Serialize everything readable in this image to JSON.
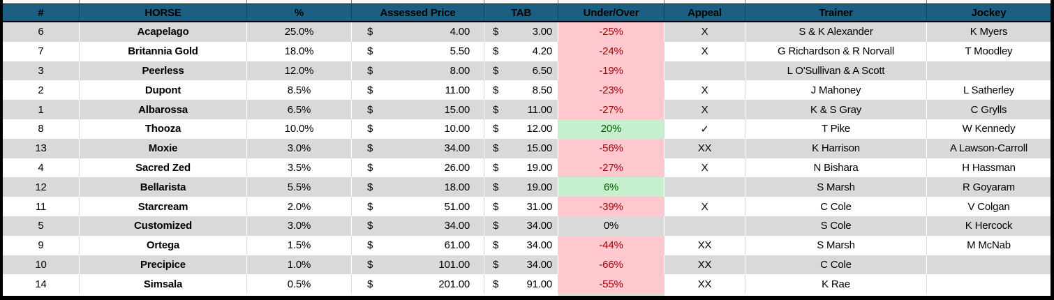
{
  "table": {
    "currency": "$",
    "columns": [
      {
        "key": "num",
        "label": "#"
      },
      {
        "key": "horse",
        "label": "HORSE"
      },
      {
        "key": "pct",
        "label": "%"
      },
      {
        "key": "assessed",
        "label": "Assessed Price"
      },
      {
        "key": "tab",
        "label": "TAB"
      },
      {
        "key": "under_over",
        "label": "Under/Over"
      },
      {
        "key": "appeal",
        "label": "Appeal"
      },
      {
        "key": "trainer",
        "label": "Trainer"
      },
      {
        "key": "jockey",
        "label": "Jockey"
      }
    ],
    "rows": [
      {
        "num": "6",
        "horse": "Acapelago",
        "pct": "25.0%",
        "assessed": "4.00",
        "tab": "3.00",
        "under_over": "-25%",
        "uo_status": "under",
        "appeal": "X",
        "trainer": "S & K Alexander",
        "jockey": "K Myers"
      },
      {
        "num": "7",
        "horse": "Britannia Gold",
        "pct": "18.0%",
        "assessed": "5.50",
        "tab": "4.20",
        "under_over": "-24%",
        "uo_status": "under",
        "appeal": "X",
        "trainer": "G Richardson & R Norvall",
        "jockey": "T Moodley"
      },
      {
        "num": "3",
        "horse": "Peerless",
        "pct": "12.0%",
        "assessed": "8.00",
        "tab": "6.50",
        "under_over": "-19%",
        "uo_status": "under",
        "appeal": "",
        "trainer": "L O'Sullivan & A Scott",
        "jockey": ""
      },
      {
        "num": "2",
        "horse": "Dupont",
        "pct": "8.5%",
        "assessed": "11.00",
        "tab": "8.50",
        "under_over": "-23%",
        "uo_status": "under",
        "appeal": "X",
        "trainer": "J Mahoney",
        "jockey": "L Satherley"
      },
      {
        "num": "1",
        "horse": "Albarossa",
        "pct": "6.5%",
        "assessed": "15.00",
        "tab": "11.00",
        "under_over": "-27%",
        "uo_status": "under",
        "appeal": "X",
        "trainer": "K & S Gray",
        "jockey": "C Grylls"
      },
      {
        "num": "8",
        "horse": "Thooza",
        "pct": "10.0%",
        "assessed": "10.00",
        "tab": "12.00",
        "under_over": "20%",
        "uo_status": "over",
        "appeal": "✓",
        "trainer": "T Pike",
        "jockey": "W Kennedy"
      },
      {
        "num": "13",
        "horse": "Moxie",
        "pct": "3.0%",
        "assessed": "34.00",
        "tab": "15.00",
        "under_over": "-56%",
        "uo_status": "under",
        "appeal": "XX",
        "trainer": "K Harrison",
        "jockey": "A Lawson-Carroll"
      },
      {
        "num": "4",
        "horse": "Sacred Zed",
        "pct": "3.5%",
        "assessed": "26.00",
        "tab": "19.00",
        "under_over": "-27%",
        "uo_status": "under",
        "appeal": "X",
        "trainer": "N Bishara",
        "jockey": "H Hassman"
      },
      {
        "num": "12",
        "horse": "Bellarista",
        "pct": "5.5%",
        "assessed": "18.00",
        "tab": "19.00",
        "under_over": "6%",
        "uo_status": "over",
        "appeal": "",
        "trainer": "S Marsh",
        "jockey": "R Goyaram"
      },
      {
        "num": "11",
        "horse": "Starcream",
        "pct": "2.0%",
        "assessed": "51.00",
        "tab": "31.00",
        "under_over": "-39%",
        "uo_status": "under",
        "appeal": "X",
        "trainer": "C Cole",
        "jockey": "V Colgan"
      },
      {
        "num": "5",
        "horse": "Customized",
        "pct": "3.0%",
        "assessed": "34.00",
        "tab": "34.00",
        "under_over": "0%",
        "uo_status": "even",
        "appeal": "",
        "trainer": "S Cole",
        "jockey": "K Hercock"
      },
      {
        "num": "9",
        "horse": "Ortega",
        "pct": "1.5%",
        "assessed": "61.00",
        "tab": "34.00",
        "under_over": "-44%",
        "uo_status": "under",
        "appeal": "XX",
        "trainer": "S Marsh",
        "jockey": "M McNab"
      },
      {
        "num": "10",
        "horse": "Precipice",
        "pct": "1.0%",
        "assessed": "101.00",
        "tab": "34.00",
        "under_over": "-66%",
        "uo_status": "under",
        "appeal": "XX",
        "trainer": "C Cole",
        "jockey": ""
      },
      {
        "num": "14",
        "horse": "Simsala",
        "pct": "0.5%",
        "assessed": "201.00",
        "tab": "91.00",
        "under_over": "-55%",
        "uo_status": "under",
        "appeal": "XX",
        "trainer": "K Rae",
        "jockey": ""
      }
    ],
    "partial_row": {
      "uo_status": "over"
    }
  },
  "colors": {
    "header_bg": "#1C5F82",
    "header_text": "#FFFFFF",
    "row_shade": "#D9D9D9",
    "row_plain": "#FFFFFF",
    "under_bg": "#FFC7CE",
    "under_text": "#9C0006",
    "over_bg": "#C6EFCE",
    "over_text": "#006100",
    "frame_border": "#000000"
  }
}
